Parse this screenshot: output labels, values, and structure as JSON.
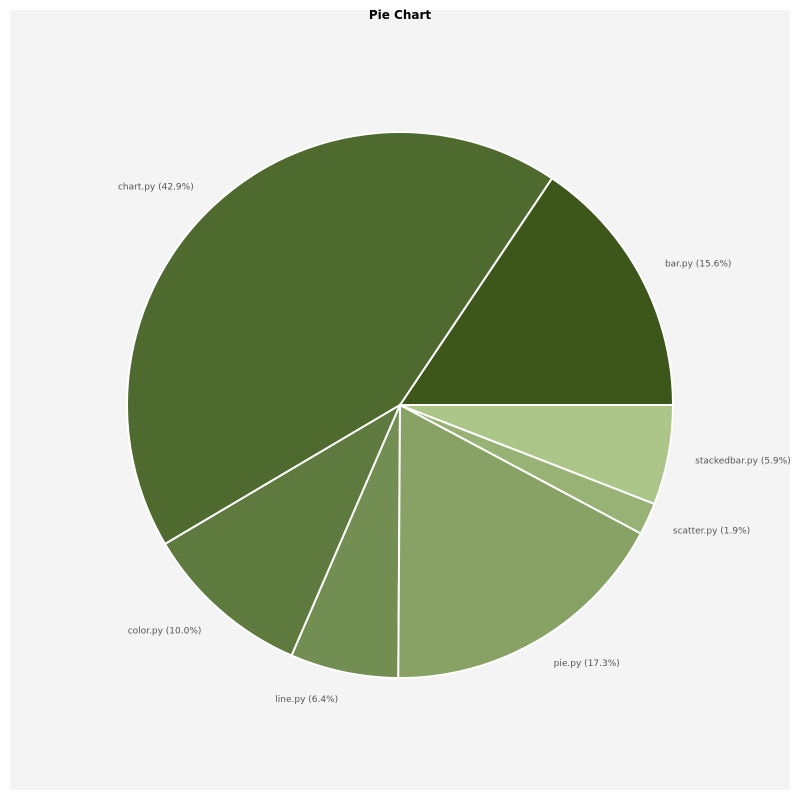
{
  "chart_data": {
    "type": "pie",
    "title": "Pie Chart",
    "slices": [
      {
        "label": "bar.py",
        "text": "bar.py (15.6%)",
        "value": 15.6,
        "color": "#3d571b"
      },
      {
        "label": "chart.py",
        "text": "chart.py (42.9%)",
        "value": 42.9,
        "color": "#4e6a2f"
      },
      {
        "label": "color.py",
        "text": "color.py (10.0%)",
        "value": 10.0,
        "color": "#5f7a3f"
      },
      {
        "label": "line.py",
        "text": "line.py (6.4%)",
        "value": 6.4,
        "color": "#738e52"
      },
      {
        "label": "pie.py",
        "text": "pie.py (17.3%)",
        "value": 17.3,
        "color": "#88a265"
      },
      {
        "label": "scatter.py",
        "text": "scatter.py (1.9%)",
        "value": 1.9,
        "color": "#98b276"
      },
      {
        "label": "stackedbar.py",
        "text": "stackedbar.py (5.9%)",
        "value": 5.9,
        "color": "#abc688"
      }
    ],
    "start_angle_deg": 0,
    "direction": "counterclockwise"
  }
}
